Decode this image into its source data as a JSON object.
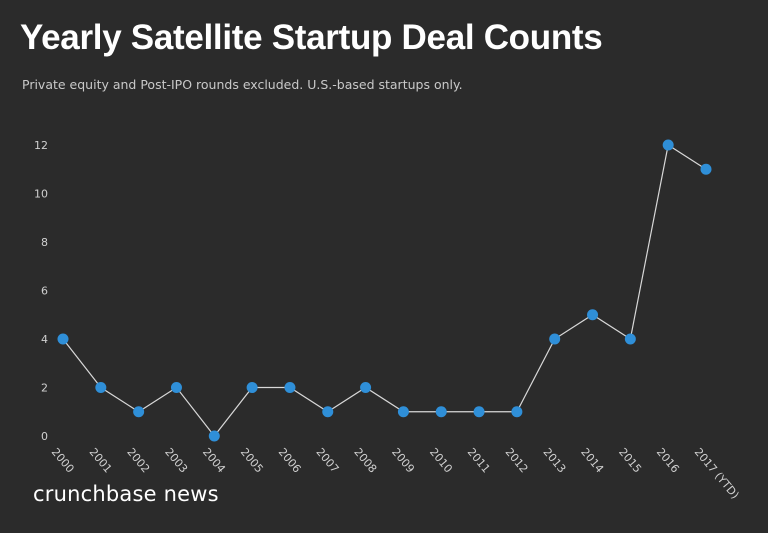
{
  "header": {
    "title": "Yearly Satellite Startup Deal Counts",
    "subtitle": "Private equity and Post-IPO rounds excluded. U.S.-based startups only."
  },
  "footer": {
    "brand": "crunchbase news"
  },
  "colors": {
    "background": "#2b2b2b",
    "line": "#d8d8d8",
    "marker": "#2f8fd8",
    "tick_label": "#d0d0d0"
  },
  "chart_data": {
    "type": "line",
    "title": "Yearly Satellite Startup Deal Counts",
    "subtitle": "Private equity and Post-IPO rounds excluded. U.S.-based startups only.",
    "xlabel": "",
    "ylabel": "",
    "categories": [
      "2000",
      "2001",
      "2002",
      "2003",
      "2004",
      "2005",
      "2006",
      "2007",
      "2008",
      "2009",
      "2010",
      "2011",
      "2012",
      "2013",
      "2014",
      "2015",
      "2016",
      "2017 (YTD)"
    ],
    "values": [
      4,
      2,
      1,
      2,
      0,
      2,
      2,
      1,
      2,
      1,
      1,
      1,
      1,
      4,
      5,
      4,
      12,
      11
    ],
    "yticks": [
      0,
      2,
      4,
      6,
      8,
      10,
      12
    ],
    "ylim": [
      0,
      12
    ],
    "grid": false,
    "legend": "none"
  }
}
